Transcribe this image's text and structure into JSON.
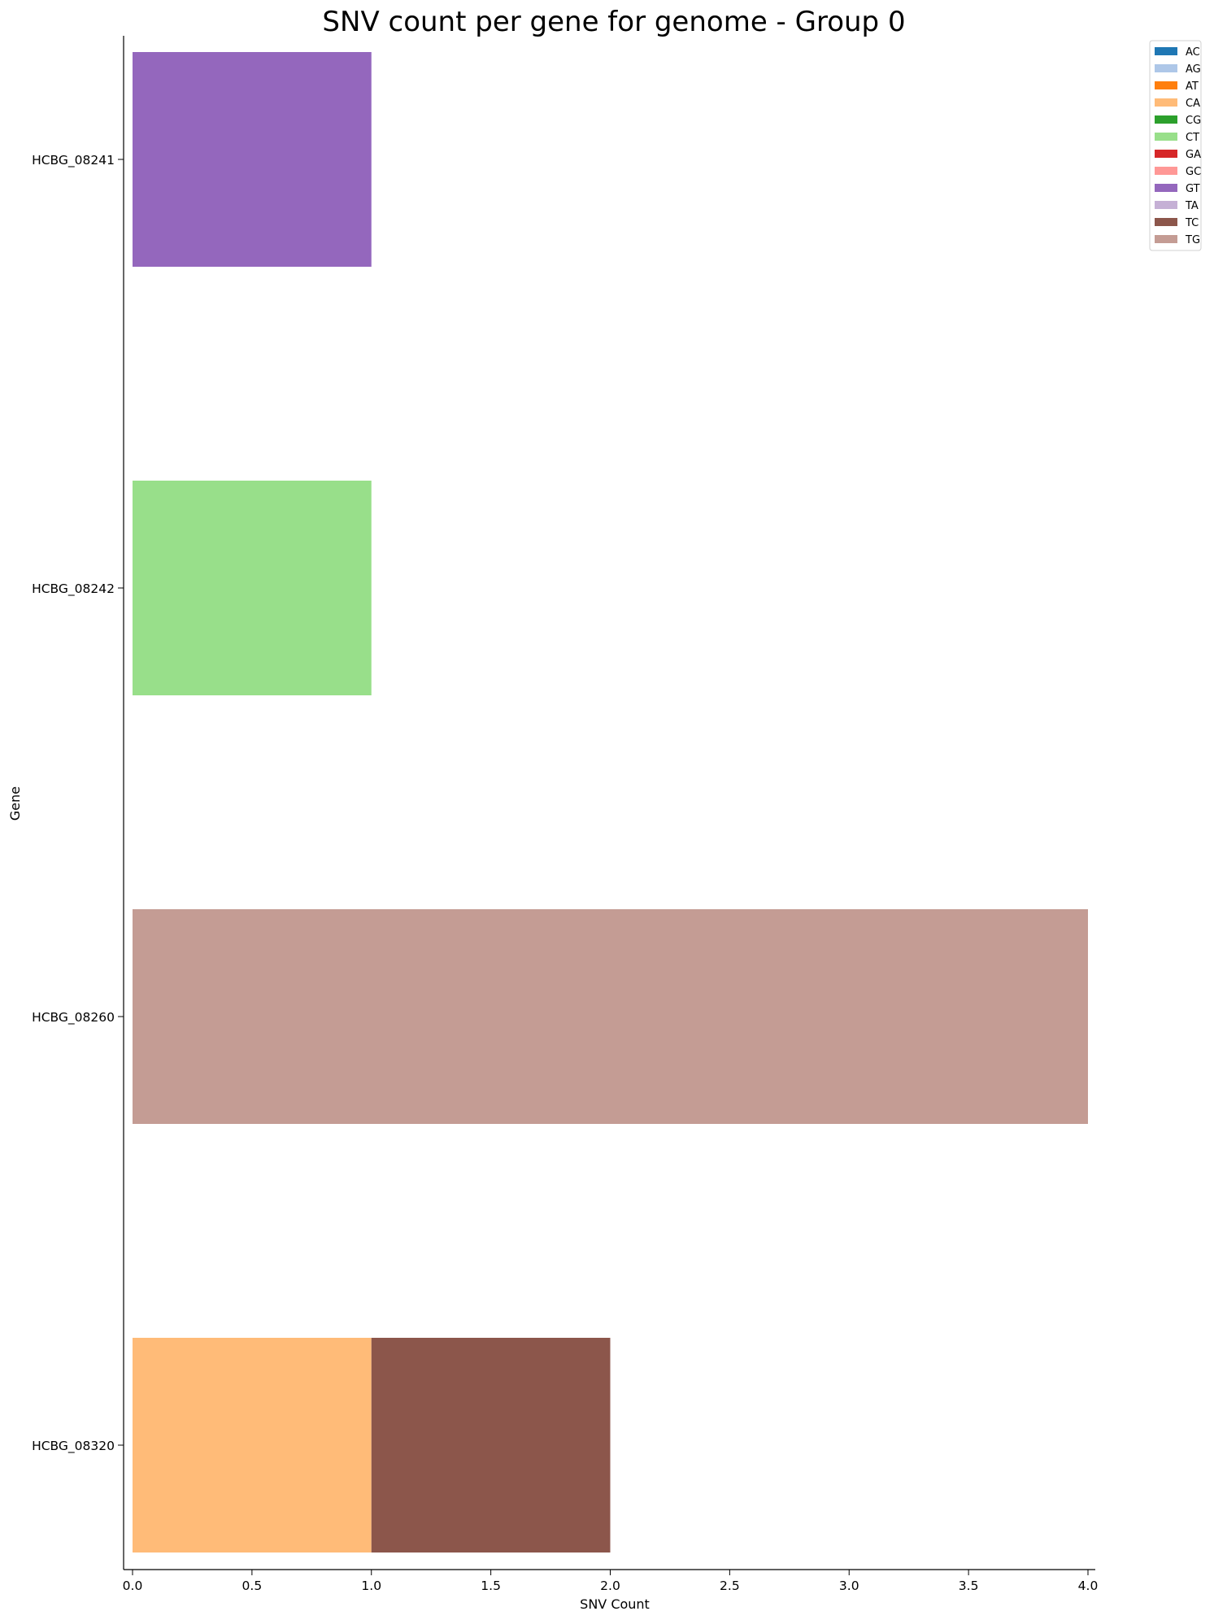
{
  "chart_data": {
    "type": "bar",
    "orientation": "horizontal",
    "stacked": true,
    "title": "SNV count per gene for genome - Group 0",
    "xlabel": "SNV Count",
    "ylabel": "Gene",
    "xlim": [
      0,
      4.0
    ],
    "xticks": [
      "0.0",
      "0.5",
      "1.0",
      "1.5",
      "2.0",
      "2.5",
      "3.0",
      "3.5",
      "4.0"
    ],
    "categories": [
      "HCBG_08241",
      "HCBG_08242",
      "HCBG_08260",
      "HCBG_08320"
    ],
    "series": [
      {
        "name": "AC",
        "color": "#1f77b4",
        "values": [
          0,
          0,
          0,
          0
        ]
      },
      {
        "name": "AG",
        "color": "#aec7e8",
        "values": [
          0,
          0,
          0,
          0
        ]
      },
      {
        "name": "AT",
        "color": "#ff7f0e",
        "values": [
          0,
          0,
          0,
          0
        ]
      },
      {
        "name": "CA",
        "color": "#ffbb78",
        "values": [
          0,
          0,
          0,
          1
        ]
      },
      {
        "name": "CG",
        "color": "#2ca02c",
        "values": [
          0,
          0,
          0,
          0
        ]
      },
      {
        "name": "CT",
        "color": "#98df8a",
        "values": [
          0,
          1,
          0,
          0
        ]
      },
      {
        "name": "GA",
        "color": "#d62728",
        "values": [
          0,
          0,
          0,
          0
        ]
      },
      {
        "name": "GC",
        "color": "#ff9896",
        "values": [
          0,
          0,
          0,
          0
        ]
      },
      {
        "name": "GT",
        "color": "#9467bd",
        "values": [
          1,
          0,
          0,
          0
        ]
      },
      {
        "name": "TA",
        "color": "#c5b0d5",
        "values": [
          0,
          0,
          0,
          0
        ]
      },
      {
        "name": "TC",
        "color": "#8c564b",
        "values": [
          0,
          0,
          0,
          1
        ]
      },
      {
        "name": "TG",
        "color": "#c49c94",
        "values": [
          0,
          0,
          4,
          0
        ]
      }
    ],
    "legend_position": "top-right",
    "grid": false
  }
}
